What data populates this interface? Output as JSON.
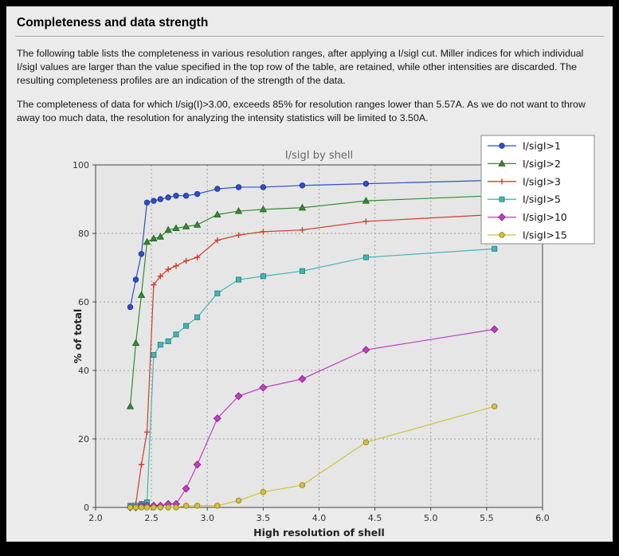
{
  "page": {
    "title": "Completeness and data strength",
    "paragraphs": [
      "The following table lists the completeness in various resolution ranges, after applying a I/sigI cut. Miller indices for which individual I/sigI values are larger than the value specified in the top row of the table, are retained, while other intensities are discarded. The resulting completeness profiles are an indication of the strength of the data.",
      "The completeness of data for which I/sig(I)>3.00, exceeds  85% for resolution ranges lower than 5.57A. As we do not want to throw away too much data, the resolution for analyzing the intensity statistics will be limited to 3.50A."
    ]
  },
  "colors": {
    "page_bg": "#ebebeb",
    "frame": "#000000",
    "plot_bg": "#e6e6e6",
    "grid": "#9f9f9f",
    "axis": "#444444",
    "tick_text": "#333333",
    "title_text": "#666666",
    "legend_bg": "#ffffff",
    "legend_border": "#888888",
    "legend_text": "#111111"
  },
  "chart_data": {
    "type": "line",
    "title": "I/sigI by shell",
    "xlabel": "High resolution of shell",
    "ylabel": "% of total",
    "xlim": [
      2.0,
      6.0
    ],
    "ylim": [
      0,
      100
    ],
    "grid": true,
    "legend_position": "top-right",
    "x_ticks": [
      2.0,
      2.5,
      3.0,
      3.5,
      4.0,
      4.5,
      5.0,
      5.5,
      6.0
    ],
    "x_tick_labels": [
      "2.0",
      "2.5",
      "3.0",
      "3.5",
      "4.0",
      "4.5",
      "5.0",
      "5.5",
      "6.0"
    ],
    "y_ticks": [
      0,
      20,
      40,
      60,
      80,
      100
    ],
    "y_tick_labels": [
      "0",
      "20",
      "40",
      "60",
      "80",
      "100"
    ],
    "x": [
      2.31,
      2.36,
      2.41,
      2.46,
      2.52,
      2.58,
      2.65,
      2.72,
      2.81,
      2.91,
      3.09,
      3.28,
      3.5,
      3.85,
      4.42,
      5.57
    ],
    "series": [
      {
        "name": "I/sigI>1",
        "color": "#2e4fc3",
        "edge": "#1c2f8c",
        "marker": "circle",
        "values": [
          58.5,
          66.5,
          74.0,
          89.0,
          89.5,
          90.0,
          90.5,
          91.0,
          91.0,
          91.5,
          93.0,
          93.5,
          93.5,
          94.0,
          94.5,
          95.5
        ]
      },
      {
        "name": "I/sigI>2",
        "color": "#348a34",
        "edge": "#1f5e1f",
        "marker": "triangle",
        "values": [
          29.5,
          48.0,
          62.0,
          77.5,
          78.5,
          79.0,
          81.0,
          81.5,
          82.0,
          82.5,
          85.5,
          86.5,
          87.0,
          87.5,
          89.5,
          91.0
        ]
      },
      {
        "name": "I/sigI>3",
        "color": "#cf3d2a",
        "edge": "#8f2418",
        "marker": "plus",
        "values": [
          0.5,
          1.0,
          12.5,
          22.0,
          65.0,
          67.5,
          69.5,
          70.5,
          72.0,
          73.0,
          78.0,
          79.5,
          80.5,
          81.0,
          83.5,
          85.5
        ]
      },
      {
        "name": "I/sigI>5",
        "color": "#45b4b4",
        "edge": "#1f7d7d",
        "marker": "square",
        "values": [
          0.5,
          0.5,
          1.0,
          1.5,
          44.5,
          47.5,
          48.5,
          50.5,
          53.0,
          55.5,
          62.5,
          66.5,
          67.5,
          69.0,
          73.0,
          75.5
        ]
      },
      {
        "name": "I/sigI>10",
        "color": "#bf3fbf",
        "edge": "#7d1f7d",
        "marker": "diamond",
        "values": [
          0.0,
          0.0,
          0.5,
          0.5,
          0.5,
          0.5,
          1.0,
          1.0,
          5.5,
          12.5,
          26.0,
          32.5,
          35.0,
          37.5,
          46.0,
          52.0
        ]
      },
      {
        "name": "I/sigI>15",
        "color": "#cfc13a",
        "edge": "#8c7f1f",
        "marker": "circle",
        "values": [
          0.0,
          0.0,
          0.0,
          0.0,
          0.0,
          0.0,
          0.0,
          0.0,
          0.5,
          0.5,
          0.5,
          2.0,
          4.5,
          6.5,
          19.0,
          29.5
        ]
      }
    ]
  }
}
